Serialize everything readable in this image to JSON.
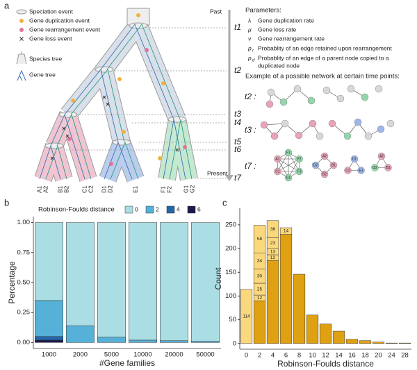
{
  "panel_labels": [
    "a",
    "b",
    "c"
  ],
  "diagram": {
    "legend": [
      "Speciation event",
      "Gene duplication event",
      "Gene rearrangement event",
      "Gene loss event",
      "Species tree",
      "Gene tree"
    ],
    "time_axis": {
      "past": "Past",
      "present": "Present",
      "times": [
        "t1",
        "t2",
        "t3",
        "t4",
        "t5",
        "t6",
        "t7"
      ]
    },
    "leaves": [
      "A1",
      "A2",
      "B1",
      "B2",
      "C1",
      "C2",
      "D1",
      "D2",
      "E1",
      "F1",
      "F2",
      "G1",
      "G2"
    ],
    "parameters": {
      "title": "Parameters:",
      "items": [
        {
          "symbol": "λ",
          "text": "Gene duplication rate"
        },
        {
          "symbol": "μ",
          "text": "Gene loss rate"
        },
        {
          "symbol": "ν",
          "text": "Gene rearrangement rate"
        },
        {
          "symbol": "p",
          "sub": "r",
          "text": "Probablity of an edge retained upon rearrangement"
        },
        {
          "symbol": "p",
          "sub": "d",
          "text": "Probablity of an edge of a parent node copied to a",
          "text2": "duplicated node"
        }
      ]
    },
    "example_title": "Example of a possible network at certain time points:",
    "networks": [
      {
        "time": "t2 :"
      },
      {
        "time": "t3 :"
      },
      {
        "time": "t7 :",
        "graphs": [
          [
            "F1",
            "F2",
            "F3",
            "G1",
            "C1",
            "A1"
          ],
          [
            "A2",
            "B1",
            "B2",
            "D2"
          ],
          [
            "D1",
            "E1",
            "C2"
          ],
          [
            "A2",
            "B1",
            "G2"
          ]
        ]
      }
    ]
  },
  "chart_data": [
    {
      "type": "bar",
      "stacked": true,
      "legend_title": "Robinson-Foulds distance",
      "categories": [
        "1000",
        "2000",
        "5000",
        "10000",
        "20000",
        "50000"
      ],
      "series": [
        {
          "name": "0",
          "color": "#aadde4",
          "values": [
            0.65,
            0.86,
            0.955,
            0.98,
            0.985,
            0.99
          ]
        },
        {
          "name": "2",
          "color": "#56b1d8",
          "values": [
            0.3,
            0.14,
            0.045,
            0.02,
            0.015,
            0.01
          ]
        },
        {
          "name": "4",
          "color": "#2266ad",
          "values": [
            0.03,
            0,
            0,
            0,
            0,
            0
          ]
        },
        {
          "name": "6",
          "color": "#1b1a4f",
          "values": [
            0.02,
            0,
            0,
            0,
            0,
            0
          ]
        }
      ],
      "xlabel": "#Gene families",
      "ylabel": "Percentage",
      "ylim": [
        -0.05,
        1.05
      ],
      "yticks": [
        {
          "value": 0,
          "label": "0.00"
        },
        {
          "value": 0.25,
          "label": "0.25"
        },
        {
          "value": 0.5,
          "label": "0.50"
        },
        {
          "value": 0.75,
          "label": "0.75"
        },
        {
          "value": 1,
          "label": "1.00"
        }
      ]
    },
    {
      "type": "bar",
      "stacked": true,
      "categories": [
        "0",
        "2",
        "4",
        "6",
        "8",
        "10",
        "12",
        "14",
        "16",
        "18",
        "20",
        "24",
        "28"
      ],
      "series": [
        {
          "color": "#dfa012",
          "values": [
            0,
            90,
            175,
            230,
            146,
            60,
            41,
            26,
            9,
            6,
            3,
            1,
            1
          ]
        },
        {
          "color": "#fbd87c",
          "values": [
            114,
            12,
            12,
            14,
            0,
            0,
            0,
            0,
            0,
            0,
            0,
            0,
            0
          ]
        },
        {
          "color": "#fbd87c",
          "values": [
            0,
            25,
            13,
            0,
            0,
            0,
            0,
            0,
            0,
            0,
            0,
            0,
            0
          ]
        },
        {
          "color": "#fbd87c",
          "values": [
            0,
            30,
            23,
            0,
            0,
            0,
            0,
            0,
            0,
            0,
            0,
            0,
            0
          ]
        },
        {
          "color": "#fbd87c",
          "values": [
            0,
            34,
            36,
            0,
            0,
            0,
            0,
            0,
            0,
            0,
            0,
            0,
            0
          ]
        },
        {
          "color": "#fbd87c",
          "values": [
            0,
            58,
            0,
            0,
            0,
            0,
            0,
            0,
            0,
            0,
            0,
            0,
            0
          ]
        }
      ],
      "xlabel": "Robinson-Foulds distance",
      "ylabel": "Count",
      "ylim": [
        -12,
        285
      ],
      "yticks": [
        0,
        50,
        100,
        150,
        200,
        250
      ]
    }
  ]
}
